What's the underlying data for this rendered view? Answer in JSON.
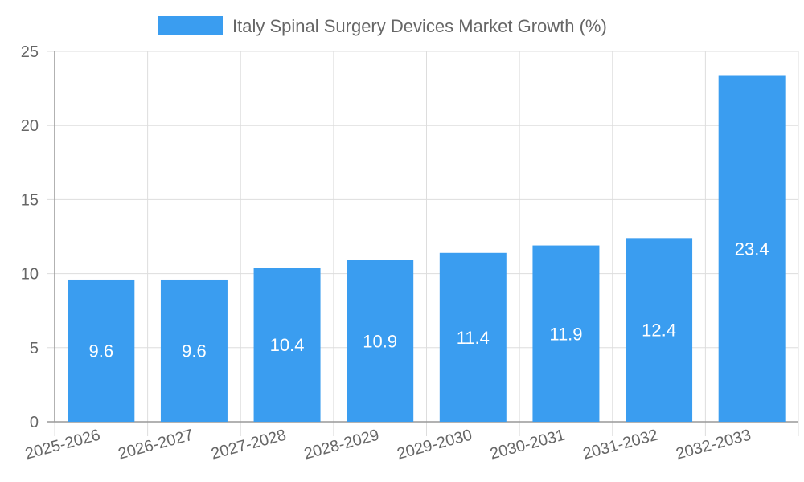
{
  "chart_data": {
    "type": "bar",
    "categories": [
      "2025-2026",
      "2026-2027",
      "2027-2028",
      "2028-2029",
      "2029-2030",
      "2030-2031",
      "2031-2032",
      "2032-2033"
    ],
    "series": [
      {
        "name": "Italy Spinal Surgery Devices Market Growth (%)",
        "values": [
          9.6,
          9.6,
          10.4,
          10.9,
          11.4,
          11.9,
          12.4,
          23.4
        ]
      }
    ],
    "ylim": [
      0,
      25
    ],
    "y_ticks": [
      "0",
      "5",
      "10",
      "15",
      "20",
      "25"
    ],
    "grid": true,
    "legend_position": "top",
    "bar_color": "#3a9df0",
    "grid_color": "#dddddd",
    "axis_color": "#999999",
    "text_color": "#666666"
  }
}
